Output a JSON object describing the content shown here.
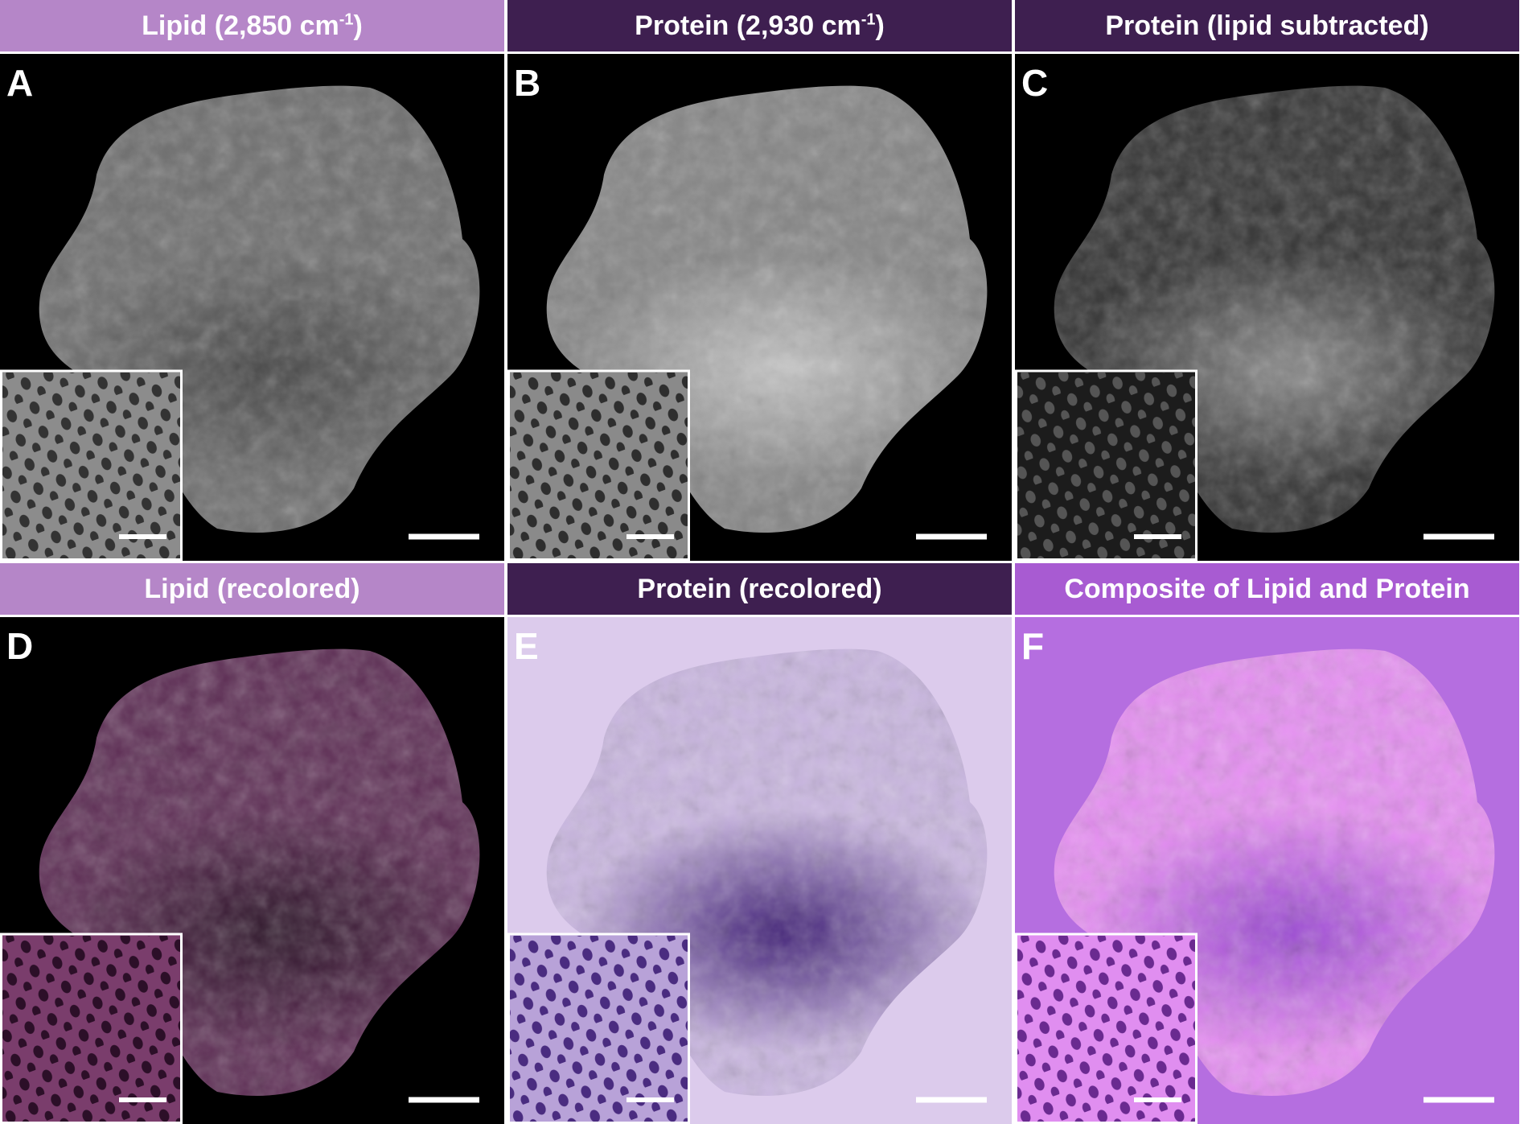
{
  "panels": [
    {
      "label": "A",
      "title": "Lipid (2,850 cm",
      "title_superscript": "-1",
      "title_suffix": ")"
    },
    {
      "label": "B",
      "title": "Protein (2,930 cm",
      "title_superscript": "-1",
      "title_suffix": ")"
    },
    {
      "label": "C",
      "title": "Protein (lipid subtracted)"
    },
    {
      "label": "D",
      "title": "Lipid (recolored)"
    },
    {
      "label": "E",
      "title": "Protein (recolored)"
    },
    {
      "label": "F",
      "title": "Composite of Lipid and Protein"
    }
  ]
}
